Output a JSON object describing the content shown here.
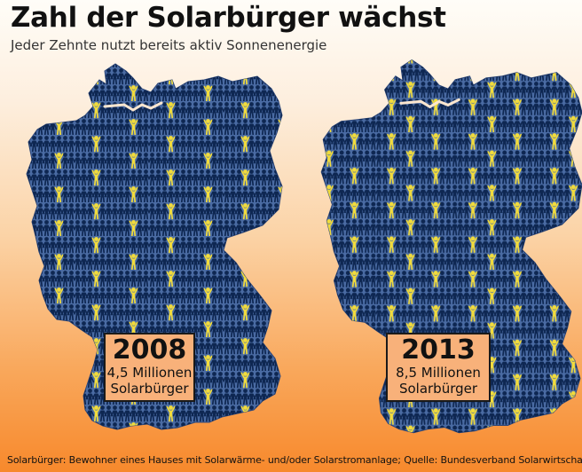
{
  "title": "Zahl der Solarbürger wächst",
  "subtitle": "Jeder Zehnte nutzt bereits aktiv Sonnenenergie",
  "colors": {
    "map_fill": "#4a6ba3",
    "people_dark": "#0e2752",
    "people_solar": "#f2dc3c",
    "label_box": "#f8b17a"
  },
  "icon": "person-figure-icon",
  "maps": [
    {
      "year": "2008",
      "count": "4,5 Millionen",
      "unit": "Solarbürger",
      "solar_ratio": 0.053
    },
    {
      "year": "2013",
      "count": "8,5 Millionen",
      "unit": "Solarbürger",
      "solar_ratio": 0.1
    }
  ],
  "footnote": "Solarbürger: Bewohner eines Hauses mit Solarwärme- und/oder Solarstromanlage; Quelle: Bundesverband Solarwirtschaft"
}
